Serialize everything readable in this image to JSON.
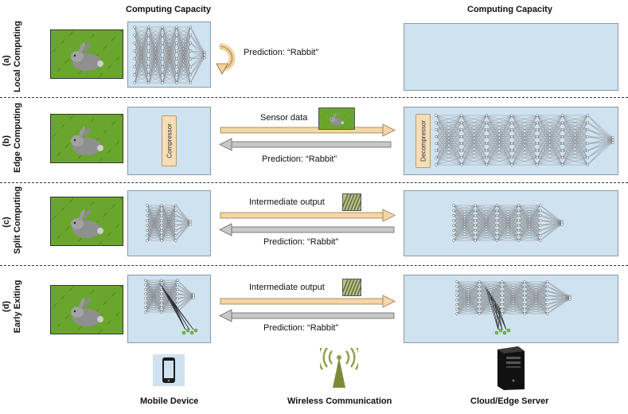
{
  "headers": {
    "left_capacity": "Computing Capacity",
    "right_capacity": "Computing Capacity"
  },
  "rows": [
    {
      "id": "a",
      "tag": "(a)",
      "name": "Local Computing",
      "prediction": "Prediction: “Rabbit”"
    },
    {
      "id": "b",
      "tag": "(b)",
      "name": "Edge Computing",
      "upload": "Sensor data",
      "prediction": "Prediction: “Rabbit”",
      "compressor": "Compressor",
      "decompressor": "Decompressor"
    },
    {
      "id": "c",
      "tag": "(c)",
      "name": "Split Computing",
      "upload": "Intermediate output",
      "prediction": "Prediction: “Rabbit”"
    },
    {
      "id": "d",
      "tag": "(d)",
      "name": "Early Exiting",
      "upload": "Intermediate output",
      "prediction": "Prediction: “Rabbit”"
    }
  ],
  "footer": {
    "mobile": "Mobile Device",
    "wireless": "Wireless Communication",
    "server": "Cloud/Edge Server"
  },
  "icons": {
    "mobile": "smartphone-icon",
    "wireless": "antenna-icon",
    "server": "server-tower-icon",
    "loop": "curved-arrow-icon"
  },
  "colors": {
    "panel": "#cfe2f0",
    "grass": "#6aa62d",
    "upload_arrow": "#f4d7a6",
    "download_arrow": "#c8c8c8",
    "box": "#f6ddb6",
    "exit_node": "#7cc04b"
  }
}
